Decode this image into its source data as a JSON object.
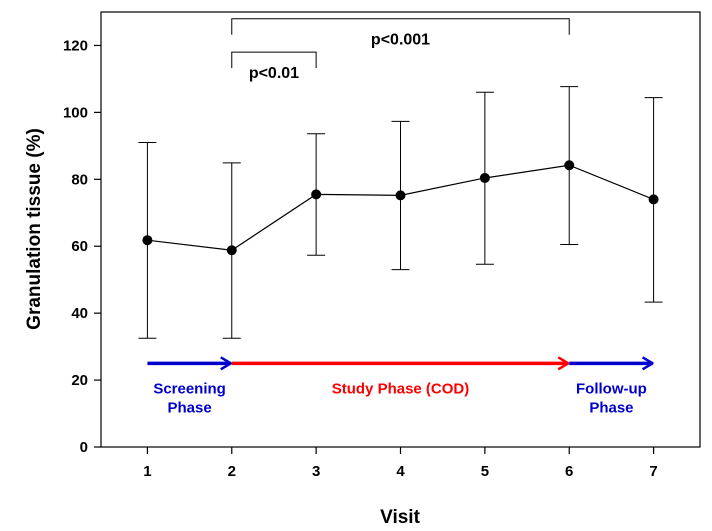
{
  "chart_data": {
    "type": "line",
    "xlabel": "Visit",
    "ylabel": "Granulation tissue (%)",
    "xlim": [
      0.45,
      7.55
    ],
    "ylim": [
      0,
      130
    ],
    "x_ticks": [
      "1",
      "2",
      "3",
      "4",
      "5",
      "6",
      "7"
    ],
    "y_ticks": [
      "0",
      "20",
      "40",
      "60",
      "80",
      "100",
      "120"
    ],
    "grid": false,
    "series": [
      {
        "x": [
          1,
          2,
          3,
          4,
          5,
          6,
          7
        ],
        "values": [
          61.8,
          58.8,
          75.5,
          75.2,
          80.4,
          84.2,
          74.0
        ],
        "error_low": [
          32.5,
          32.5,
          57.3,
          53.0,
          54.6,
          60.5,
          43.3
        ],
        "error_high": [
          91.0,
          84.9,
          93.6,
          97.3,
          106.0,
          107.7,
          104.4
        ]
      }
    ],
    "annotations": [
      {
        "text": "p<0.01",
        "from_x": 2,
        "to_x": 3,
        "y": 118
      },
      {
        "text": "p<0.001",
        "from_x": 2,
        "to_x": 6,
        "y": 128
      }
    ],
    "phases": [
      {
        "lines": [
          "Screening",
          "Phase"
        ],
        "from_x": 1,
        "to_x": 2,
        "y": 25,
        "color": "#0000cc"
      },
      {
        "lines": [
          "Study Phase (COD)"
        ],
        "from_x": 2,
        "to_x": 6,
        "y": 25,
        "color": "#ff0000"
      },
      {
        "lines": [
          "Follow-up",
          "Phase"
        ],
        "from_x": 6,
        "to_x": 7,
        "y": 25,
        "color": "#0000cc"
      }
    ]
  }
}
